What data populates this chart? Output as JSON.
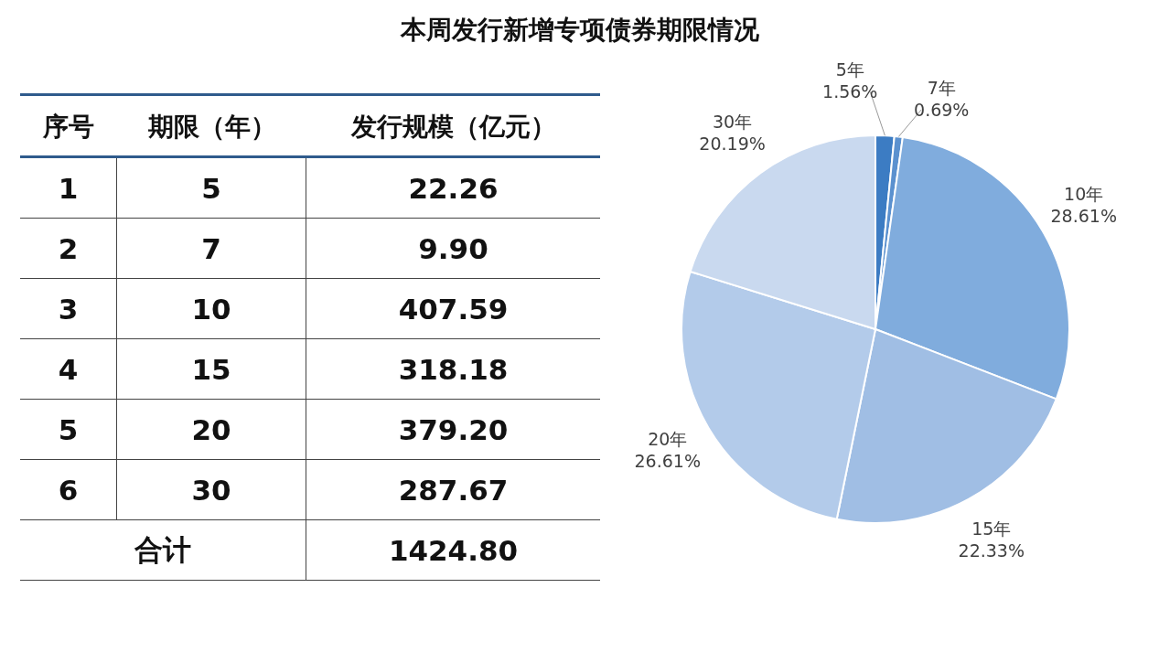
{
  "chart_data": {
    "type": "pie",
    "title": "本周发行新增专项债券期限情况",
    "categories": [
      "5年",
      "7年",
      "10年",
      "15年",
      "20年",
      "30年"
    ],
    "values": [
      1.56,
      0.69,
      28.61,
      22.33,
      26.61,
      20.19
    ],
    "value_labels": [
      "1.56%",
      "0.69%",
      "28.61%",
      "22.33%",
      "26.61%",
      "20.19%"
    ],
    "colors": [
      "#3c7cc3",
      "#5b91cf",
      "#80acdd",
      "#a0bee4",
      "#b3cbea",
      "#c9d9ef"
    ],
    "annotations": [
      "序号",
      "期限（年）",
      "发行规模（亿元）",
      "1",
      "5",
      "22.26",
      "2",
      "7",
      "9.90",
      "3",
      "10",
      "407.59",
      "4",
      "15",
      "318.18",
      "5",
      "20",
      "379.20",
      "6",
      "30",
      "287.67",
      "合计",
      "1424.80"
    ]
  }
}
